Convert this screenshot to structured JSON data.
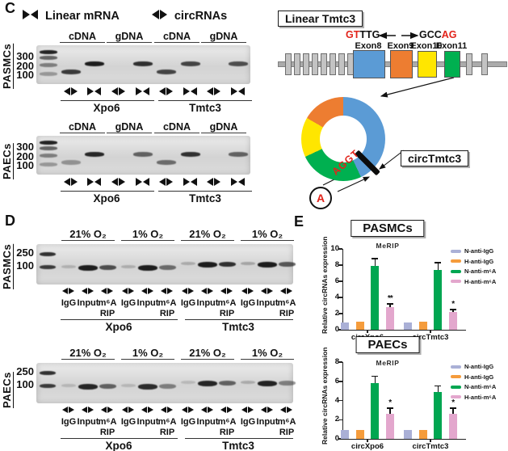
{
  "colors": {
    "exon8_blue": "#5B9BD5",
    "exon9_orange": "#ED7D31",
    "exon10_yellow": "#FFE600",
    "exon11_green": "#00B050",
    "red_text": "#E2231A",
    "bar_n_igg": "#AAB0D6",
    "bar_h_igg": "#F59C3C",
    "bar_n_m6a": "#00A651",
    "bar_h_m6a": "#E3A7CD"
  },
  "panelC": {
    "label": "C",
    "legend": [
      {
        "icon": "convergent-arrows",
        "label": "Linear mRNA"
      },
      {
        "icon": "divergent-arrows",
        "label": "circRNAs"
      }
    ],
    "gels": [
      {
        "cell_label": "PASMCs",
        "ladder_labels": [
          "300",
          "200",
          "100"
        ],
        "lane_headers": [
          "cDNA",
          "gDNA",
          "cDNA",
          "gDNA"
        ],
        "lanes": [
          {
            "primer": "divergent",
            "band": "low",
            "intensity": 0.8
          },
          {
            "primer": "convergent",
            "band": "high",
            "intensity": 0.95
          },
          {
            "primer": "divergent",
            "band": "none",
            "intensity": 0
          },
          {
            "primer": "convergent",
            "band": "high",
            "intensity": 0.85
          },
          {
            "primer": "divergent",
            "band": "low",
            "intensity": 0.75
          },
          {
            "primer": "convergent",
            "band": "high",
            "intensity": 0.75
          },
          {
            "primer": "divergent",
            "band": "none",
            "intensity": 0
          },
          {
            "primer": "convergent",
            "band": "high",
            "intensity": 0.7
          }
        ],
        "gene_groups": [
          "Xpo6",
          "Tmtc3"
        ]
      },
      {
        "cell_label": "PAECs",
        "ladder_labels": [
          "300",
          "200",
          "100"
        ],
        "lane_headers": [
          "cDNA",
          "gDNA",
          "cDNA",
          "gDNA"
        ],
        "lanes": [
          {
            "primer": "divergent",
            "band": "low",
            "intensity": 0.35
          },
          {
            "primer": "convergent",
            "band": "high",
            "intensity": 0.9
          },
          {
            "primer": "divergent",
            "band": "none",
            "intensity": 0
          },
          {
            "primer": "convergent",
            "band": "high",
            "intensity": 0.6
          },
          {
            "primer": "divergent",
            "band": "low",
            "intensity": 0.55
          },
          {
            "primer": "convergent",
            "band": "high",
            "intensity": 0.85
          },
          {
            "primer": "divergent",
            "band": "none",
            "intensity": 0
          },
          {
            "primer": "convergent",
            "band": "high",
            "intensity": 0.6
          }
        ],
        "gene_groups": [
          "Xpo6",
          "Tmtc3"
        ]
      }
    ]
  },
  "diagram": {
    "linear_title": "Linear Tmtc3",
    "left_flank_red": "GT",
    "left_flank_black": "TTG",
    "right_flank_black": "GCC",
    "right_flank_red": "AG",
    "exon_labels": [
      "Exon8",
      "Exon9",
      "Exon10",
      "Exon11"
    ],
    "circ_title": "circTmtc3",
    "junction_seq": "AGGT",
    "m6a_letter": "A"
  },
  "panelD": {
    "label": "D",
    "gels": [
      {
        "cell_label": "PASMCs",
        "ladder_labels": [
          "250",
          "100"
        ],
        "condition_headers": [
          "21% O₂",
          "1% O₂",
          "21% O₂",
          "1% O₂"
        ],
        "lane_labels": [
          "IgG",
          "Input",
          "m⁶A"
        ],
        "rip_label": "RIP",
        "gene_groups": [
          "Xpo6",
          "Tmtc3"
        ],
        "lane_intensities": [
          0.18,
          0.95,
          0.7,
          0.2,
          0.95,
          0.55,
          0.22,
          0.95,
          0.85,
          0.25,
          0.95,
          0.65
        ]
      },
      {
        "cell_label": "PAECs",
        "ladder_labels": [
          "250",
          "100"
        ],
        "condition_headers": [
          "21% O₂",
          "1% O₂",
          "21% O₂",
          "1% O₂"
        ],
        "lane_labels": [
          "IgG",
          "Input",
          "m⁶A"
        ],
        "rip_label": "RIP",
        "gene_groups": [
          "Xpo6",
          "Tmtc3"
        ],
        "lane_intensities": [
          0.15,
          0.9,
          0.6,
          0.15,
          0.88,
          0.45,
          0.15,
          0.9,
          0.6,
          0.22,
          0.92,
          0.45
        ]
      }
    ]
  },
  "panelE": {
    "label": "E"
  },
  "chart_data": [
    {
      "type": "bar",
      "title": "PASMCs",
      "subtitle": "MeRIP",
      "ylabel": "Relative circRNAs expression",
      "ylim": [
        0,
        10
      ],
      "yticks": [
        0,
        2,
        4,
        6,
        8,
        10
      ],
      "categories": [
        "circXpo6",
        "circTmtc3"
      ],
      "series": [
        {
          "name": "N-anti-IgG",
          "color": "#AAB0D6",
          "values": [
            0.9,
            0.9
          ],
          "errors": [
            0,
            0
          ]
        },
        {
          "name": "H-anti-IgG",
          "color": "#F59C3C",
          "values": [
            1.0,
            1.0
          ],
          "errors": [
            0,
            0
          ]
        },
        {
          "name": "N-anti-m⁶A",
          "color": "#00A651",
          "values": [
            7.9,
            7.4
          ],
          "errors": [
            0.9,
            0.9
          ]
        },
        {
          "name": "H-anti-m⁶A",
          "color": "#E3A7CD",
          "values": [
            2.8,
            2.2
          ],
          "errors": [
            0.4,
            0.3
          ]
        }
      ],
      "significance": [
        {
          "category": "circXpo6",
          "series": "H-anti-m⁶A",
          "label": "**"
        },
        {
          "category": "circTmtc3",
          "series": "H-anti-m⁶A",
          "label": "*"
        }
      ],
      "legend_position": "right",
      "grid": false
    },
    {
      "type": "bar",
      "title": "PAECs",
      "subtitle": "MeRIP",
      "ylabel": "Relative circRNAs expression",
      "ylim": [
        0,
        8
      ],
      "yticks": [
        0,
        2,
        4,
        6,
        8
      ],
      "categories": [
        "circXpo6",
        "circTmtc3"
      ],
      "series": [
        {
          "name": "N-anti-IgG",
          "color": "#AAB0D6",
          "values": [
            0.9,
            0.9
          ],
          "errors": [
            0,
            0
          ]
        },
        {
          "name": "H-anti-IgG",
          "color": "#F59C3C",
          "values": [
            0.9,
            0.9
          ],
          "errors": [
            0,
            0
          ]
        },
        {
          "name": "N-anti-m⁶A",
          "color": "#00A651",
          "values": [
            5.8,
            4.9
          ],
          "errors": [
            0.7,
            0.6
          ]
        },
        {
          "name": "H-anti-m⁶A",
          "color": "#E3A7CD",
          "values": [
            2.6,
            2.6
          ],
          "errors": [
            0.6,
            0.6
          ]
        }
      ],
      "significance": [
        {
          "category": "circXpo6",
          "series": "H-anti-m⁶A",
          "label": "*"
        },
        {
          "category": "circTmtc3",
          "series": "H-anti-m⁶A",
          "label": "*"
        }
      ],
      "legend_position": "right",
      "grid": false
    }
  ]
}
